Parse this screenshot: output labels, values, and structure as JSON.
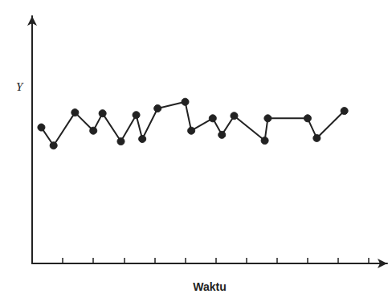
{
  "chart_data": {
    "type": "line",
    "x_label": "Waktu",
    "y_label": "Y",
    "x": [
      0.3,
      0.7,
      1.4,
      2.0,
      2.3,
      2.9,
      3.4,
      3.6,
      4.1,
      5.0,
      5.2,
      5.9,
      6.2,
      6.6,
      7.6,
      7.7,
      9.0,
      9.3,
      10.2
    ],
    "values": [
      16.5,
      14.3,
      18.3,
      16.1,
      18.2,
      14.8,
      18.0,
      15.1,
      18.8,
      19.6,
      16.1,
      17.6,
      15.6,
      17.9,
      14.9,
      17.6,
      17.6,
      15.2,
      18.5
    ],
    "color": "#222222",
    "marker": "circle",
    "xlim": [
      0,
      11.6
    ],
    "xticks": [
      1,
      2,
      3,
      4,
      5,
      6,
      7,
      8,
      9,
      10,
      11
    ],
    "ylim": [
      0,
      30
    ],
    "grid": false,
    "tick_labels": false
  }
}
